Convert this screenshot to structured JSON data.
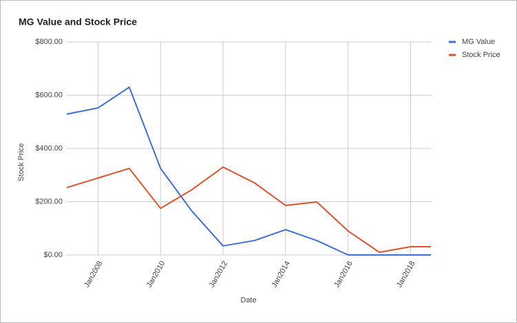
{
  "chart_data": {
    "type": "line",
    "title": "MG Value and Stock Price",
    "x_label": "Date",
    "y_label": "Stock Price",
    "x": [
      2007,
      2008,
      2009,
      2010,
      2011,
      2012,
      2013,
      2014,
      2015,
      2016,
      2017,
      2018,
      2018.65
    ],
    "xlim": [
      2007,
      2018.65
    ],
    "xticks": [
      {
        "value": 2008,
        "label": "Jan2008"
      },
      {
        "value": 2010,
        "label": "Jan2010"
      },
      {
        "value": 2012,
        "label": "Jan2012"
      },
      {
        "value": 2014,
        "label": "Jan2014"
      },
      {
        "value": 2016,
        "label": "Jan2016"
      },
      {
        "value": 2018,
        "label": "Jan2018"
      }
    ],
    "ylim": [
      0,
      800
    ],
    "yticks": [
      {
        "value": 0,
        "label": "$0.00"
      },
      {
        "value": 200,
        "label": "$200.00"
      },
      {
        "value": 400,
        "label": "$400.00"
      },
      {
        "value": 600,
        "label": "$600.00"
      },
      {
        "value": 800,
        "label": "$800.00"
      }
    ],
    "grid": true,
    "legend": "right",
    "series": [
      {
        "name": "MG Value",
        "color": "#3d6fd6",
        "values": [
          529,
          552,
          630,
          325,
          165,
          34,
          54,
          95,
          54,
          0,
          0,
          0,
          0
        ]
      },
      {
        "name": "Stock Price",
        "color": "#e0522b",
        "values": [
          253,
          289,
          325,
          175,
          245,
          330,
          271,
          186,
          199,
          90,
          10,
          31,
          31
        ]
      }
    ]
  }
}
